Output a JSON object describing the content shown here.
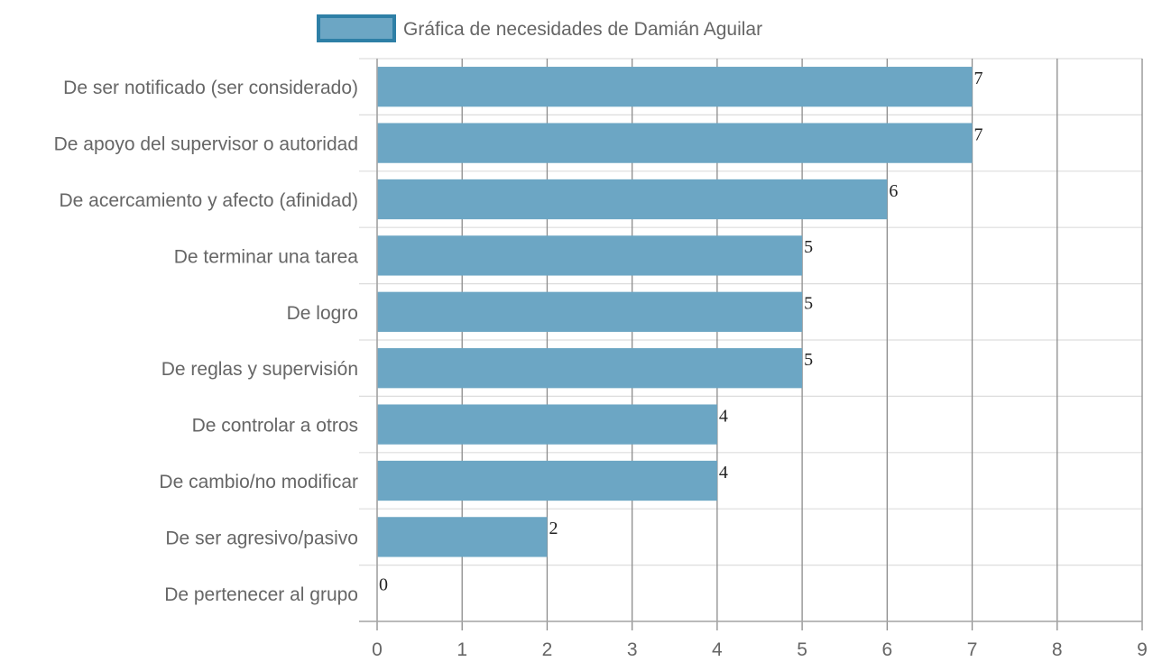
{
  "colors": {
    "bar_fill": "#6ca6c4",
    "bar_border": "#2e7fa6",
    "grid_major": "#8c8c8c",
    "grid_minor": "#dddddd",
    "text": "#666666"
  },
  "legend": {
    "label": "Gráfica de necesidades de Damián Aguilar"
  },
  "chart_data": {
    "type": "bar",
    "orientation": "horizontal",
    "categories": [
      "De ser notificado (ser considerado)",
      "De apoyo del supervisor o autoridad",
      "De acercamiento y afecto (afinidad)",
      "De terminar una tarea",
      "De logro",
      "De reglas y supervisión",
      "De controlar a otros",
      "De cambio/no modificar",
      "De ser agresivo/pasivo",
      "De pertenecer al grupo"
    ],
    "series": [
      {
        "name": "Gráfica de necesidades de Damián Aguilar",
        "values": [
          7,
          7,
          6,
          5,
          5,
          5,
          4,
          4,
          2,
          0
        ]
      }
    ],
    "xlim": [
      0,
      9
    ],
    "xticks": [
      "0",
      "1",
      "2",
      "3",
      "4",
      "5",
      "6",
      "7",
      "8",
      "9"
    ],
    "grid": true,
    "legend_position": "top-center",
    "data_labels": true
  }
}
